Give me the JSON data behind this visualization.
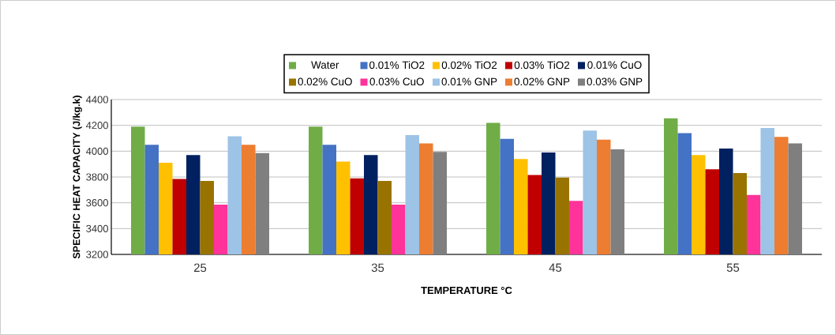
{
  "chart_data": {
    "type": "bar",
    "xlabel": "TEMPERATURE °C",
    "ylabel": "SPECIFIC HEAT CAPACITY (J/kg.k)",
    "categories": [
      "25",
      "35",
      "45",
      "55"
    ],
    "series": [
      {
        "name": "Water",
        "color": "#70ad47",
        "values": [
          4190,
          4190,
          4220,
          4255
        ]
      },
      {
        "name": "0.01% TiO2",
        "color": "#4472c4",
        "values": [
          4050,
          4050,
          4095,
          4140
        ]
      },
      {
        "name": "0.02% TiO2",
        "color": "#ffc000",
        "values": [
          3910,
          3920,
          3940,
          3970
        ]
      },
      {
        "name": "0.03% TiO2",
        "color": "#c00000",
        "values": [
          3785,
          3790,
          3815,
          3860
        ]
      },
      {
        "name": "0.01% CuO",
        "color": "#002060",
        "values": [
          3970,
          3970,
          3990,
          4020
        ]
      },
      {
        "name": "0.02% CuO",
        "color": "#997300",
        "values": [
          3770,
          3770,
          3795,
          3830
        ]
      },
      {
        "name": "0.03% CuO",
        "color": "#ff3399",
        "values": [
          3585,
          3585,
          3615,
          3660
        ]
      },
      {
        "name": "0.01% GNP",
        "color": "#9dc3e6",
        "values": [
          4115,
          4125,
          4160,
          4180
        ]
      },
      {
        "name": "0.02% GNP",
        "color": "#ed7d31",
        "values": [
          4050,
          4060,
          4090,
          4110
        ]
      },
      {
        "name": "0.03% GNP",
        "color": "#7f7f7f",
        "values": [
          3985,
          3995,
          4015,
          4060
        ]
      }
    ],
    "ylim": [
      3200,
      4400
    ],
    "yticks": [
      3200,
      3400,
      3600,
      3800,
      4000,
      4200,
      4400
    ],
    "grid": "y",
    "legend": "top"
  }
}
